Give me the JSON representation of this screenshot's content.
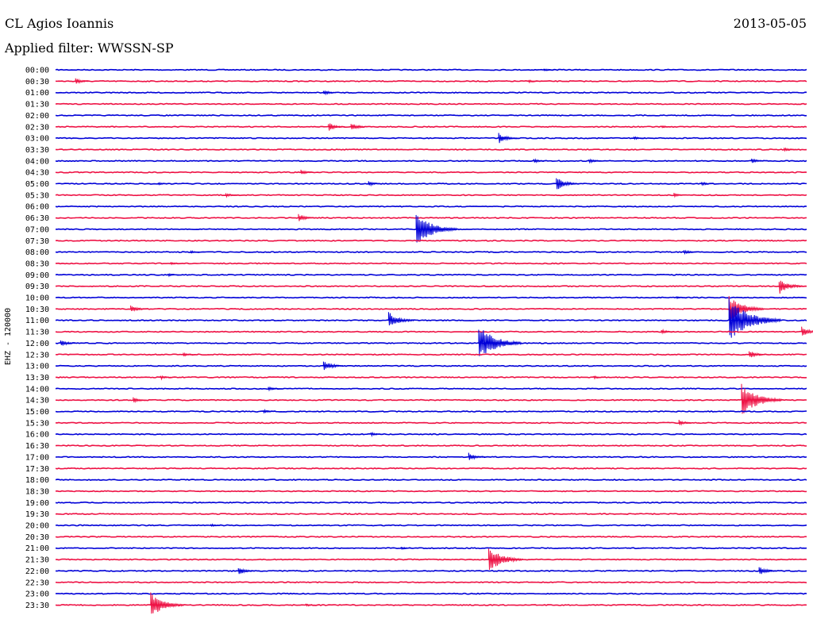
{
  "header": {
    "station": "CL Agios Ioannis",
    "date": "2013-05-05",
    "filter_label": "Applied filter: WWSSN-SP"
  },
  "colors": {
    "odd_trace": "#0000d8",
    "even_trace": "#ee1144"
  },
  "channel_label": "EHZ - 120000",
  "chart_data": {
    "type": "line",
    "title": "CL Agios Ioannis",
    "subtitle": "Applied filter: WWSSN-SP",
    "date": "2013-05-05",
    "ylabel": "EHZ - 120000",
    "grid": false,
    "x_unit": "minutes past row start",
    "xlim": [
      0,
      30
    ],
    "series": [
      {
        "time": "00:00",
        "events": [
          {
            "t": 19.5,
            "amp": 0.3
          }
        ]
      },
      {
        "time": "00:30",
        "events": [
          {
            "t": 0.8,
            "amp": 0.6
          },
          {
            "t": 18.9,
            "amp": 0.3
          }
        ]
      },
      {
        "time": "01:00",
        "events": [
          {
            "t": 10.7,
            "amp": 0.5
          }
        ]
      },
      {
        "time": "01:30",
        "events": []
      },
      {
        "time": "02:00",
        "events": []
      },
      {
        "time": "02:30",
        "events": [
          {
            "t": 10.9,
            "amp": 0.8
          },
          {
            "t": 11.8,
            "amp": 0.8
          },
          {
            "t": 24.2,
            "amp": 0.3
          }
        ]
      },
      {
        "time": "03:00",
        "events": [
          {
            "t": 17.7,
            "amp": 1.0
          },
          {
            "t": 23.1,
            "amp": 0.3
          }
        ]
      },
      {
        "time": "03:30",
        "events": [
          {
            "t": 29.1,
            "amp": 0.4
          }
        ]
      },
      {
        "time": "04:00",
        "events": [
          {
            "t": 19.1,
            "amp": 0.4
          },
          {
            "t": 21.3,
            "amp": 0.5
          },
          {
            "t": 27.8,
            "amp": 0.5
          }
        ]
      },
      {
        "time": "04:30",
        "events": [
          {
            "t": 9.8,
            "amp": 0.5
          }
        ]
      },
      {
        "time": "05:00",
        "events": [
          {
            "t": 4.1,
            "amp": 0.3
          },
          {
            "t": 12.5,
            "amp": 0.5
          },
          {
            "t": 20.0,
            "amp": 1.3
          },
          {
            "t": 25.8,
            "amp": 0.4
          }
        ]
      },
      {
        "time": "05:30",
        "events": [
          {
            "t": 6.8,
            "amp": 0.4
          },
          {
            "t": 24.7,
            "amp": 0.4
          }
        ]
      },
      {
        "time": "06:00",
        "events": []
      },
      {
        "time": "06:30",
        "events": [
          {
            "t": 9.7,
            "amp": 0.8
          }
        ]
      },
      {
        "time": "07:00",
        "events": [
          {
            "t": 14.4,
            "amp": 3.0
          }
        ]
      },
      {
        "time": "07:30",
        "events": []
      },
      {
        "time": "08:00",
        "events": [
          {
            "t": 5.4,
            "amp": 0.3
          },
          {
            "t": 25.1,
            "amp": 0.5
          }
        ]
      },
      {
        "time": "08:30",
        "events": [
          {
            "t": 4.6,
            "amp": 0.3
          }
        ]
      },
      {
        "time": "09:00",
        "events": [
          {
            "t": 4.5,
            "amp": 0.3
          }
        ]
      },
      {
        "time": "09:30",
        "events": [
          {
            "t": 28.9,
            "amp": 1.5
          }
        ]
      },
      {
        "time": "10:00",
        "events": [
          {
            "t": 24.8,
            "amp": 0.3
          }
        ]
      },
      {
        "time": "10:30",
        "events": [
          {
            "t": 3.0,
            "amp": 0.8
          },
          {
            "t": 26.9,
            "amp": 2.5
          }
        ]
      },
      {
        "time": "11:00",
        "events": [
          {
            "t": 13.3,
            "amp": 1.6
          },
          {
            "t": 26.9,
            "amp": 4.0
          }
        ]
      },
      {
        "time": "11:30",
        "events": [
          {
            "t": 24.2,
            "amp": 0.5
          },
          {
            "t": 29.8,
            "amp": 1.0
          }
        ]
      },
      {
        "time": "12:00",
        "events": [
          {
            "t": 0.2,
            "amp": 0.7
          },
          {
            "t": 16.9,
            "amp": 3.2
          }
        ]
      },
      {
        "time": "12:30",
        "events": [
          {
            "t": 5.1,
            "amp": 0.4
          },
          {
            "t": 27.7,
            "amp": 0.8
          }
        ]
      },
      {
        "time": "13:00",
        "events": [
          {
            "t": 10.7,
            "amp": 1.1
          }
        ]
      },
      {
        "time": "13:30",
        "events": [
          {
            "t": 4.2,
            "amp": 0.4
          },
          {
            "t": 21.5,
            "amp": 0.3
          }
        ]
      },
      {
        "time": "14:00",
        "events": [
          {
            "t": 8.5,
            "amp": 0.4
          }
        ]
      },
      {
        "time": "14:30",
        "events": [
          {
            "t": 3.1,
            "amp": 0.5
          },
          {
            "t": 27.4,
            "amp": 3.0
          }
        ]
      },
      {
        "time": "15:00",
        "events": [
          {
            "t": 8.3,
            "amp": 0.4
          }
        ]
      },
      {
        "time": "15:30",
        "events": [
          {
            "t": 24.9,
            "amp": 0.6
          }
        ]
      },
      {
        "time": "16:00",
        "events": [
          {
            "t": 12.6,
            "amp": 0.4
          }
        ]
      },
      {
        "time": "16:30",
        "events": []
      },
      {
        "time": "17:00",
        "events": [
          {
            "t": 16.5,
            "amp": 0.8
          }
        ]
      },
      {
        "time": "17:30",
        "events": []
      },
      {
        "time": "18:00",
        "events": []
      },
      {
        "time": "18:30",
        "events": []
      },
      {
        "time": "19:00",
        "events": []
      },
      {
        "time": "19:30",
        "events": []
      },
      {
        "time": "20:00",
        "events": [
          {
            "t": 6.2,
            "amp": 0.3
          }
        ]
      },
      {
        "time": "20:30",
        "events": []
      },
      {
        "time": "21:00",
        "events": [
          {
            "t": 13.8,
            "amp": 0.3
          }
        ]
      },
      {
        "time": "21:30",
        "events": [
          {
            "t": 17.3,
            "amp": 2.4
          }
        ]
      },
      {
        "time": "22:00",
        "events": [
          {
            "t": 7.3,
            "amp": 0.8
          },
          {
            "t": 28.1,
            "amp": 0.9
          }
        ]
      },
      {
        "time": "22:30",
        "events": []
      },
      {
        "time": "23:00",
        "events": []
      },
      {
        "time": "23:30",
        "events": [
          {
            "t": 3.8,
            "amp": 2.3
          },
          {
            "t": 10.0,
            "amp": 0.3
          }
        ]
      }
    ]
  }
}
